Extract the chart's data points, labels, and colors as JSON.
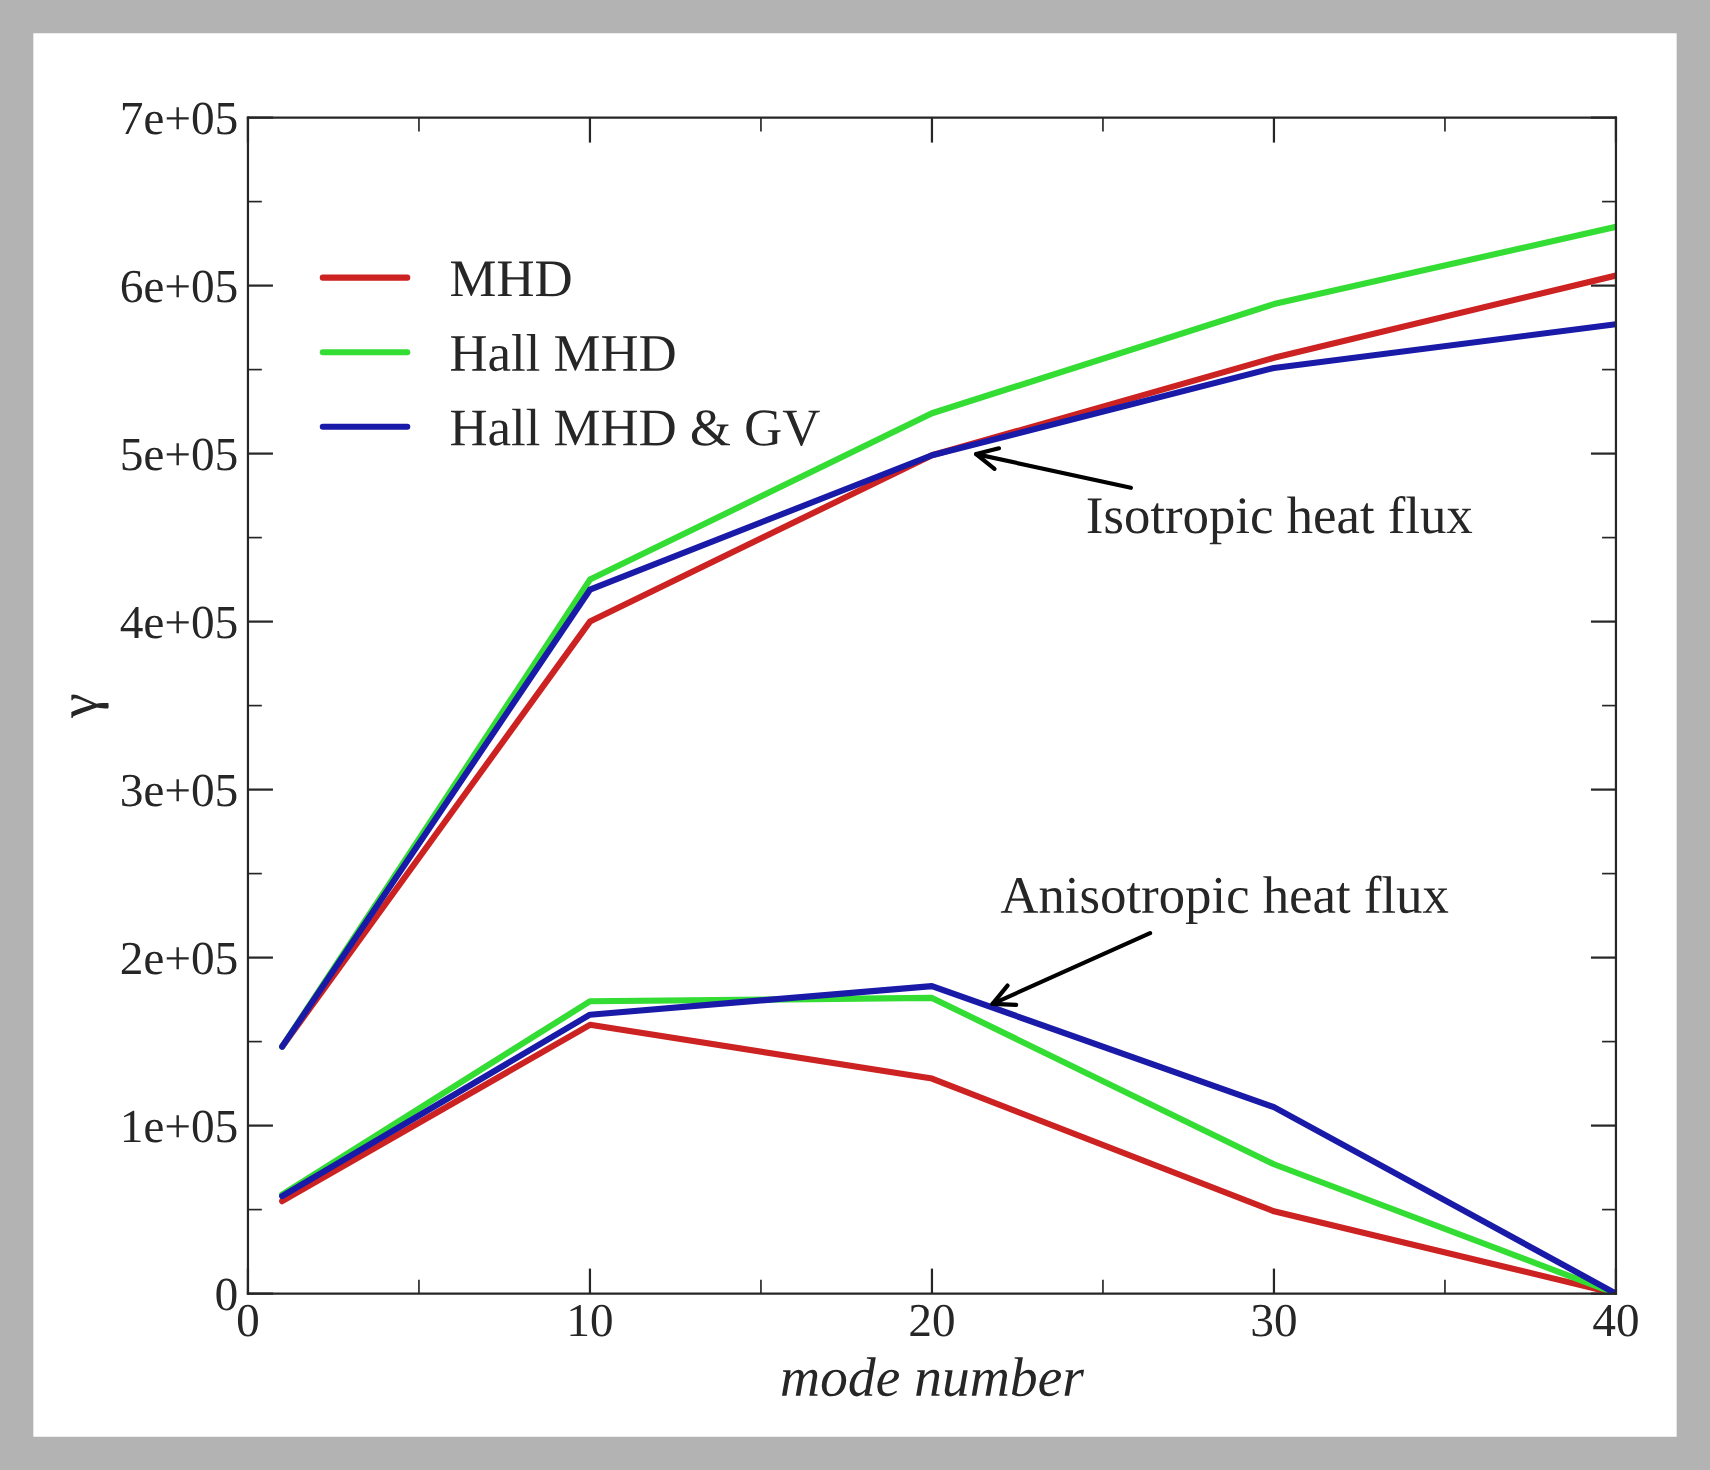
{
  "chart_data": {
    "type": "line",
    "xlabel": "mode number",
    "ylabel": "γ",
    "x": [
      1,
      10,
      20,
      30,
      40
    ],
    "series": [
      {
        "name": "MHD",
        "color": "#cc2222",
        "values": [
          147000,
          400000,
          499000,
          557000,
          606000
        ]
      },
      {
        "name": "Hall MHD",
        "color": "#33dd33",
        "values": [
          147000,
          425000,
          524000,
          589000,
          635000
        ]
      },
      {
        "name": "Hall MHD & GV",
        "color": "#1a1aa8",
        "values": [
          147000,
          419000,
          499000,
          551000,
          577000
        ]
      },
      {
        "color": "#cc2222",
        "values": [
          55000,
          160000,
          128000,
          49000,
          0
        ]
      },
      {
        "color": "#33dd33",
        "values": [
          59000,
          174000,
          176000,
          77000,
          0
        ]
      },
      {
        "color": "#1a1aa8",
        "values": [
          58000,
          166000,
          183000,
          111000,
          0
        ]
      }
    ],
    "xlim": [
      0,
      40
    ],
    "ylim": [
      0,
      700000
    ],
    "xticks": [
      0,
      10,
      20,
      30,
      40
    ],
    "yticks": [
      {
        "value": 0,
        "label": "0"
      },
      {
        "value": 100000,
        "label": "1e+05"
      },
      {
        "value": 200000,
        "label": "2e+05"
      },
      {
        "value": 300000,
        "label": "3e+05"
      },
      {
        "value": 400000,
        "label": "4e+05"
      },
      {
        "value": 500000,
        "label": "5e+05"
      },
      {
        "value": 600000,
        "label": "6e+05"
      },
      {
        "value": 700000,
        "label": "7e+05"
      }
    ],
    "annotations": [
      {
        "text": "Isotropic heat flux",
        "x": 21,
        "y": 501000
      },
      {
        "text": "Anisotropic heat flux",
        "x": 21.5,
        "y": 170000
      }
    ],
    "legend": "top left",
    "grid": false,
    "marker": "none",
    "line_style": "solid"
  }
}
